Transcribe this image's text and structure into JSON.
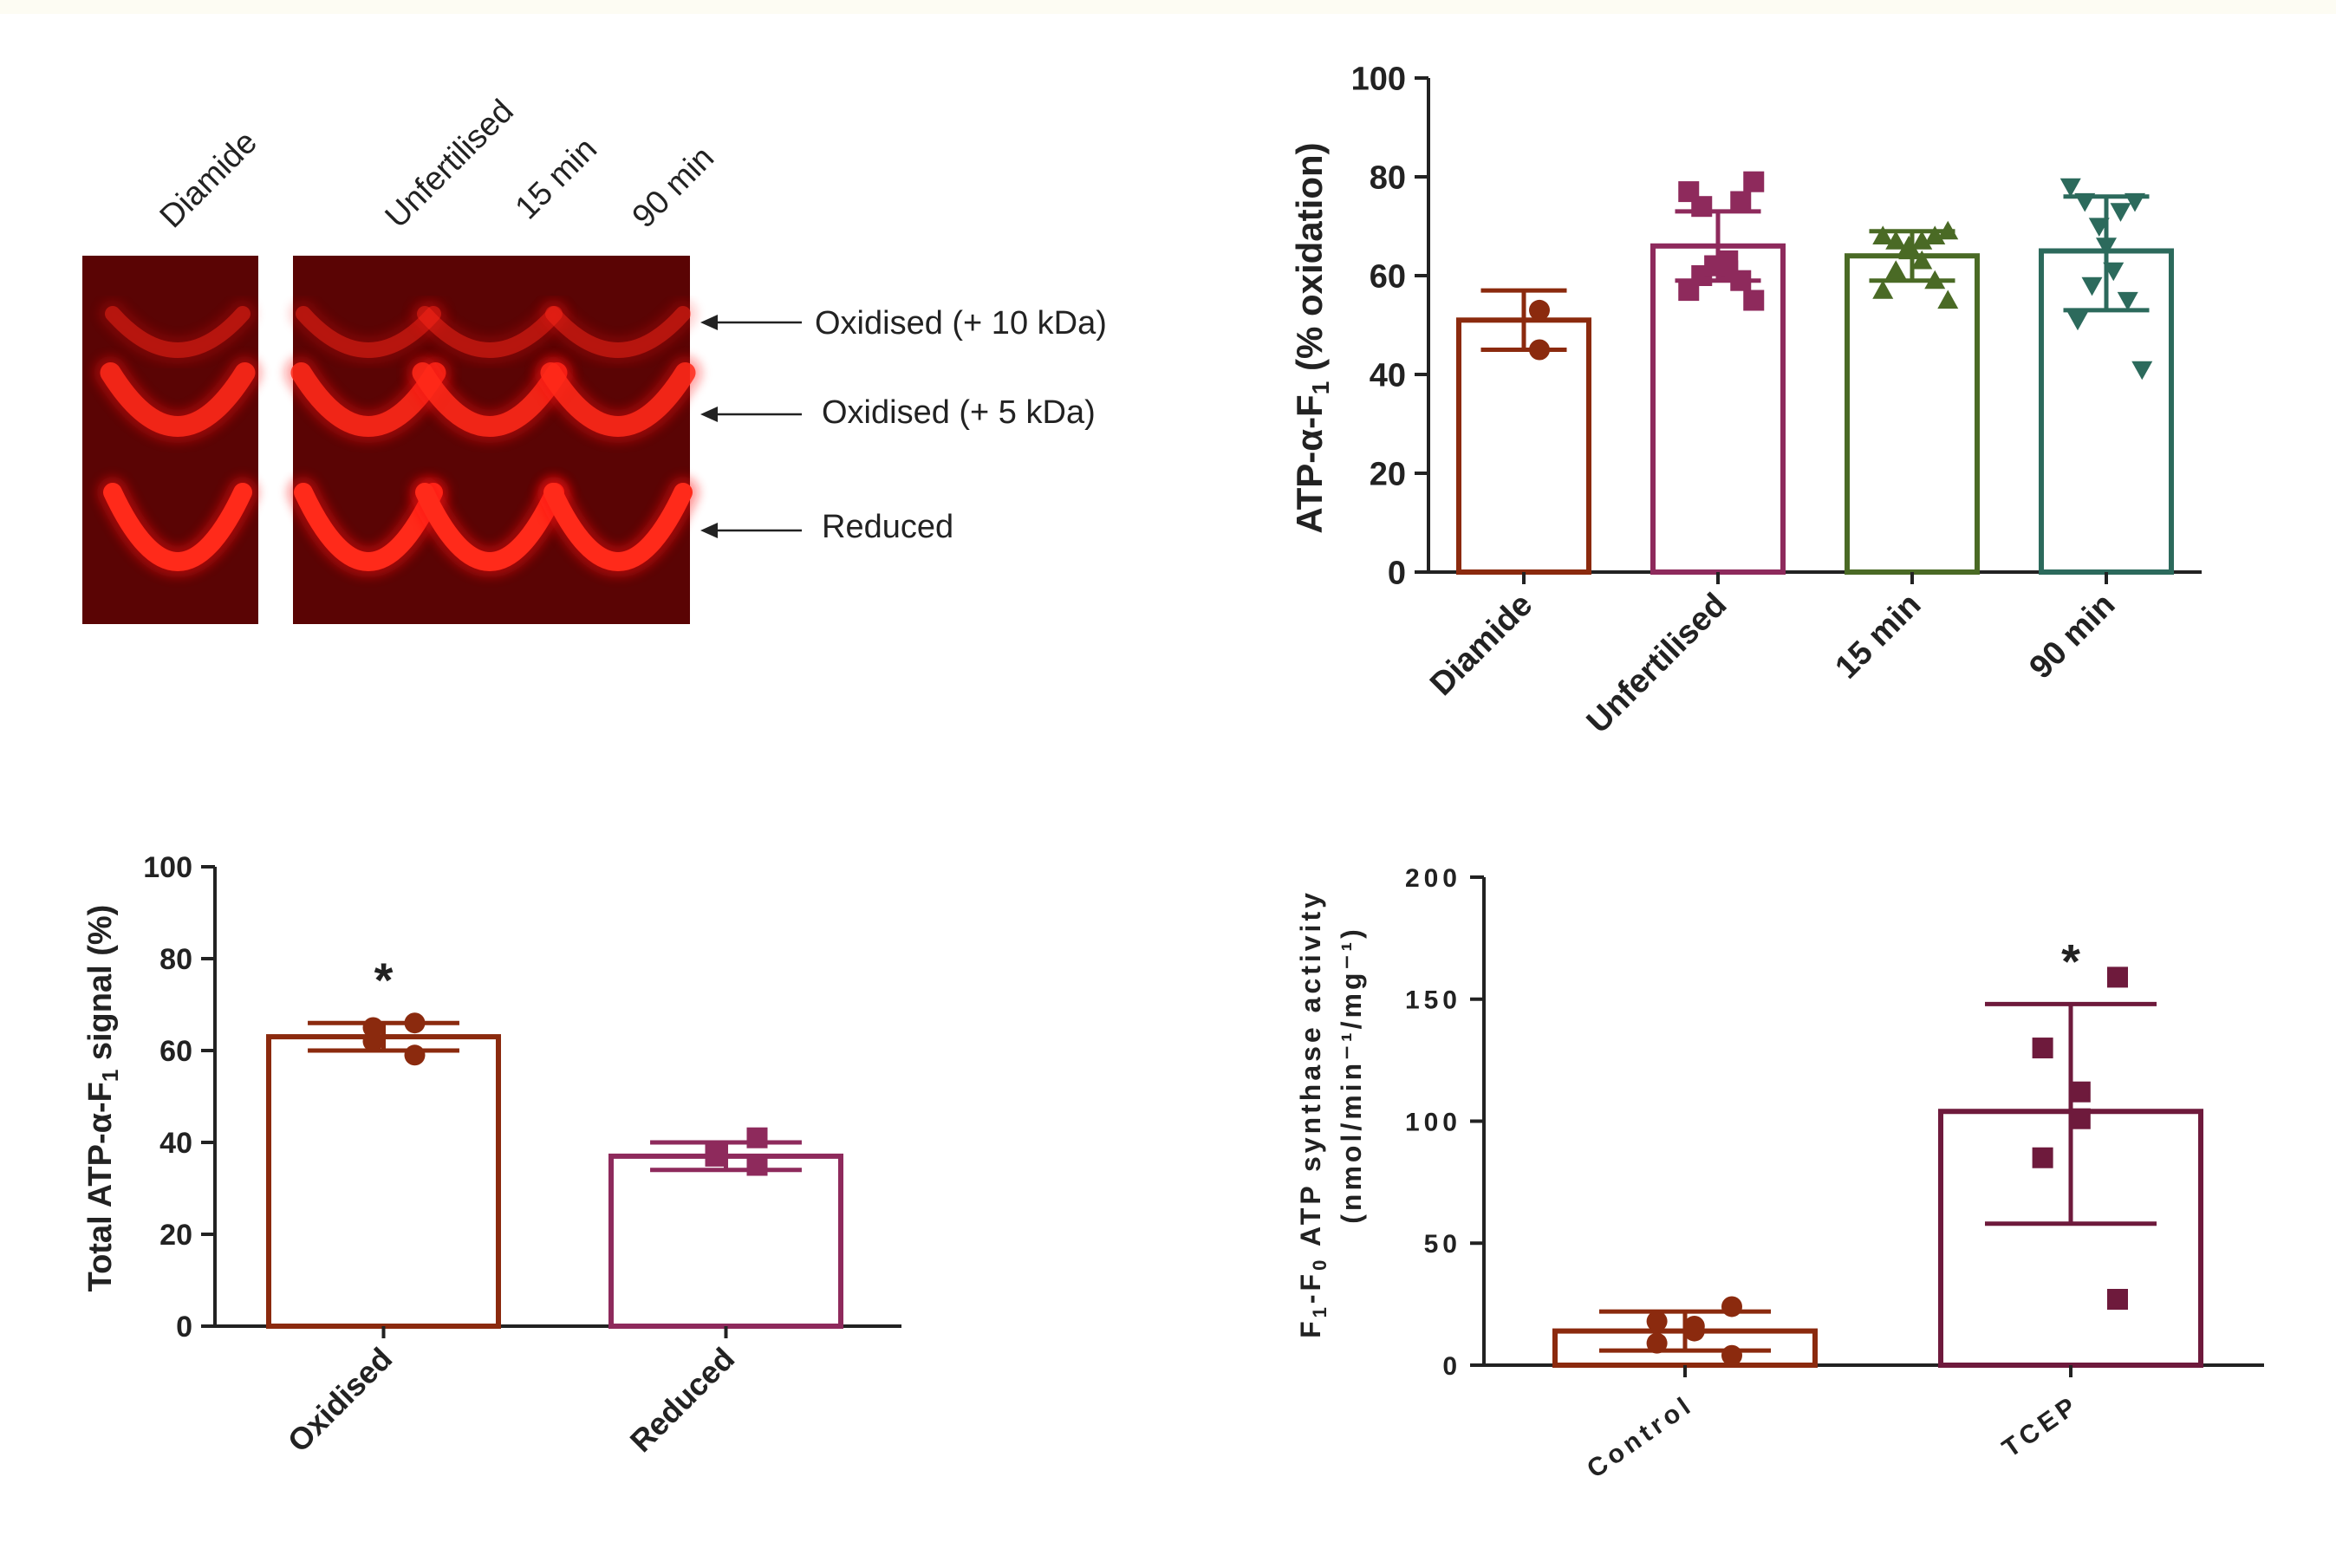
{
  "gel": {
    "lane_labels": [
      "Diamide",
      "Unfertilised",
      "15 min",
      "90 min"
    ],
    "band_labels": [
      "Oxidised (+ 10 kDa)",
      "Oxidised (+ 5 kDa)",
      "Reduced"
    ]
  },
  "chart_data": [
    {
      "id": "panel-b",
      "type": "bar",
      "ylabel_main": "ATP-α-F",
      "ylabel_sub": "1",
      "ylabel_tail": " (% oxidation)",
      "ylim": [
        0,
        100
      ],
      "yticks": [
        0,
        20,
        40,
        60,
        80,
        100
      ],
      "categories": [
        "Diamide",
        "Unfertilised",
        "15 min",
        "90 min"
      ],
      "values": [
        51,
        66,
        64,
        65
      ],
      "errors": [
        [
          45,
          57
        ],
        [
          59,
          73
        ],
        [
          59,
          69
        ],
        [
          53,
          76
        ]
      ],
      "colors": [
        "#8B2A0E",
        "#8E2A5C",
        "#4A6A25",
        "#2C6A5C"
      ],
      "markers": [
        "circle",
        "square",
        "triangle-up",
        "triangle-down"
      ],
      "points": [
        [
          53,
          45
        ],
        [
          55,
          57,
          59,
          60,
          61,
          62,
          62,
          63,
          74,
          75,
          77,
          79
        ],
        [
          55,
          57,
          59,
          61,
          63,
          65,
          66,
          67,
          67,
          68,
          68,
          69
        ],
        [
          41,
          51,
          55,
          58,
          61,
          66,
          70,
          73,
          75,
          75,
          78
        ]
      ]
    },
    {
      "id": "panel-c",
      "type": "bar",
      "ylabel_main": "Total ATP-α-F",
      "ylabel_sub": "1",
      "ylabel_tail": " signal (%)",
      "ylim": [
        0,
        100
      ],
      "yticks": [
        0,
        20,
        40,
        60,
        80,
        100
      ],
      "categories": [
        "Oxidised",
        "Reduced"
      ],
      "values": [
        63,
        37
      ],
      "errors": [
        [
          60,
          66
        ],
        [
          34,
          40
        ]
      ],
      "colors": [
        "#8B2A0E",
        "#8E2A5C"
      ],
      "markers": [
        "circle",
        "square"
      ],
      "points": [
        [
          59,
          62,
          65,
          66
        ],
        [
          35,
          37,
          38,
          41
        ]
      ],
      "annotations": [
        "*",
        ""
      ]
    },
    {
      "id": "panel-d",
      "type": "bar",
      "ylabel_line1_main": "F",
      "ylabel_line1_sub1": "1",
      "ylabel_line1_mid": "-F",
      "ylabel_line1_sub2": "0",
      "ylabel_line1_tail": " ATP synthase activity",
      "ylabel_line2": "(nmol/min⁻¹/mg⁻¹)",
      "ylim": [
        0,
        200
      ],
      "yticks": [
        0,
        50,
        100,
        150,
        200
      ],
      "categories": [
        "Control",
        "TCEP"
      ],
      "values": [
        14,
        104
      ],
      "errors": [
        [
          6,
          22
        ],
        [
          58,
          148
        ]
      ],
      "colors": [
        "#8B2A0E",
        "#6E1A3C"
      ],
      "markers": [
        "circle",
        "square"
      ],
      "points": [
        [
          4,
          9,
          14,
          16,
          18,
          24
        ],
        [
          27,
          85,
          101,
          112,
          130,
          159
        ]
      ],
      "annotations": [
        "",
        "*"
      ]
    }
  ]
}
